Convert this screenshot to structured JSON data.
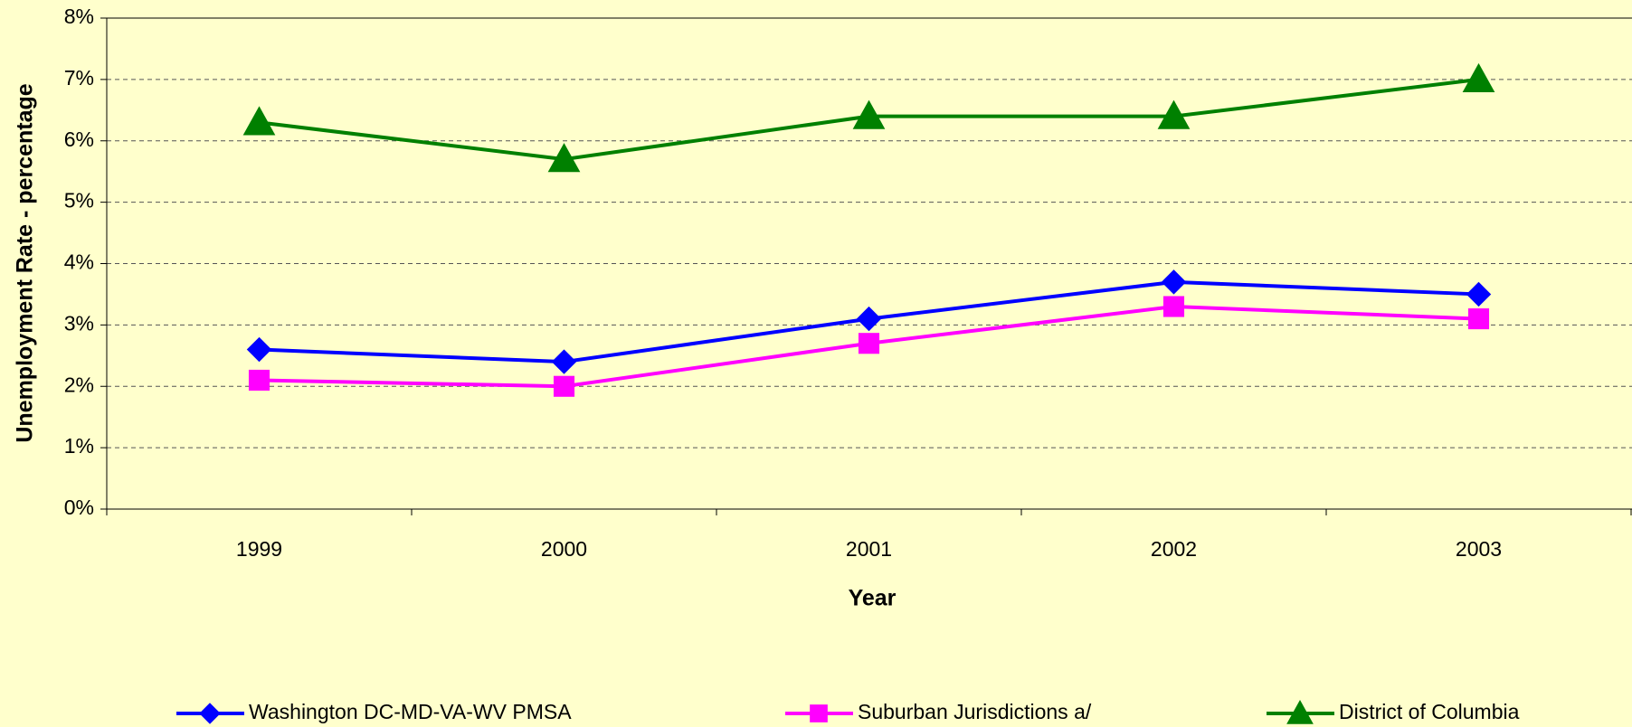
{
  "chart_data": {
    "type": "line",
    "xlabel": "Year",
    "ylabel": "Unemployment Rate - percentage",
    "categories": [
      "1999",
      "2000",
      "2001",
      "2002",
      "2003"
    ],
    "series": [
      {
        "name": "Washington DC-MD-VA-WV PMSA",
        "color": "#0000ff",
        "marker": "diamond",
        "values": [
          2.6,
          2.4,
          3.1,
          3.7,
          3.5
        ]
      },
      {
        "name": "Suburban Jurisdictions a/",
        "color": "#ff00ff",
        "marker": "square",
        "values": [
          2.1,
          2.0,
          2.7,
          3.3,
          3.1
        ]
      },
      {
        "name": "District of Columbia",
        "color": "#008000",
        "marker": "triangle",
        "values": [
          6.3,
          5.7,
          6.4,
          6.4,
          7.0
        ]
      }
    ],
    "ylim": [
      0,
      8
    ],
    "yticks": [
      {
        "value": 0,
        "label": "0%"
      },
      {
        "value": 1,
        "label": "1%"
      },
      {
        "value": 2,
        "label": "2%"
      },
      {
        "value": 3,
        "label": "3%"
      },
      {
        "value": 4,
        "label": "4%"
      },
      {
        "value": 5,
        "label": "5%"
      },
      {
        "value": 6,
        "label": "6%"
      },
      {
        "value": 7,
        "label": "7%"
      },
      {
        "value": 8,
        "label": "8%"
      }
    ],
    "grid": true,
    "legend": "bottom"
  }
}
